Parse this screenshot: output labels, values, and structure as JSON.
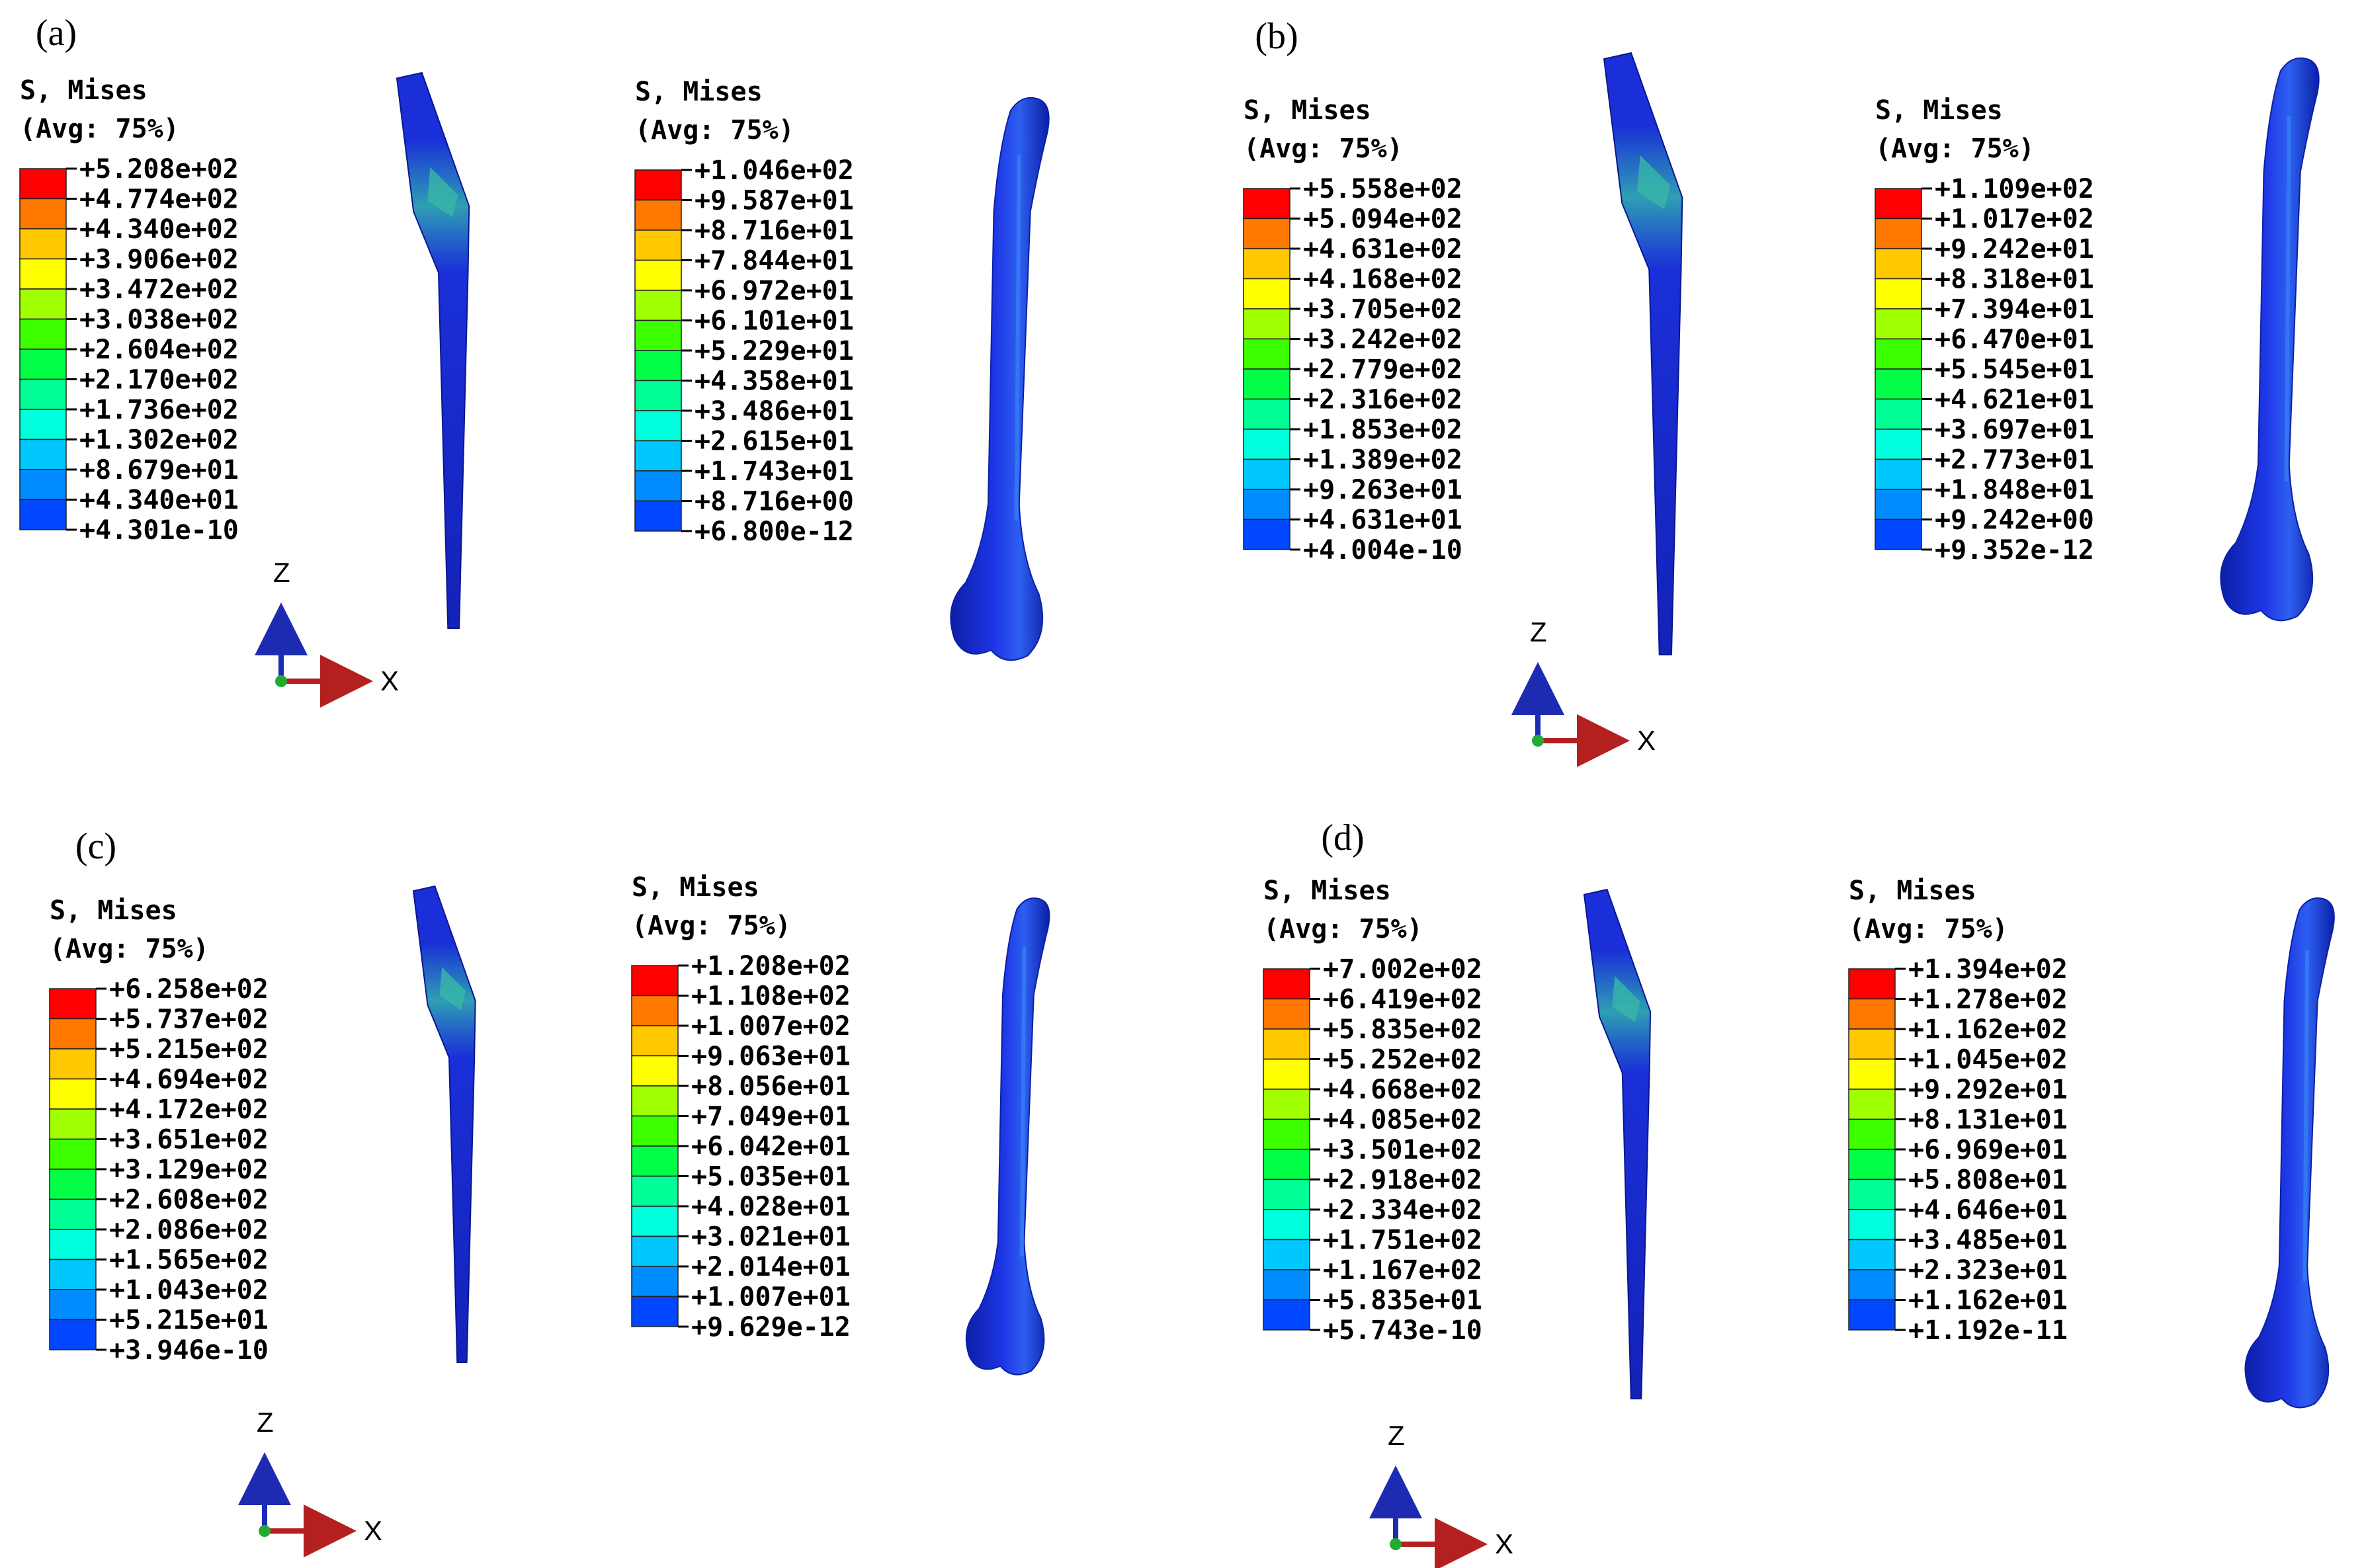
{
  "colors": {
    "colormap": [
      "#0000ff",
      "#0047ff",
      "#008cff",
      "#00c8ff",
      "#00ffdc",
      "#00ff96",
      "#00ff46",
      "#3cff00",
      "#a0ff00",
      "#ffff00",
      "#ffc800",
      "#ff7800",
      "#ff0000"
    ],
    "implant_base": "#1a2fd8",
    "implant_hot": "#2e9fb2",
    "bone_base": "#1e36e6",
    "bone_edge": "#0b1fa6",
    "triad_z": "#1d2bb3",
    "triad_x": "#b3201f",
    "triad_origin": "#22aa33"
  },
  "panels": [
    {
      "label": "(a)",
      "axis_z": "Z",
      "axis_x": "X",
      "legends": [
        {
          "title": "S, Mises",
          "subtitle": "(Avg: 75%)",
          "values": [
            "+5.208e+02",
            "+4.774e+02",
            "+4.340e+02",
            "+3.906e+02",
            "+3.472e+02",
            "+3.038e+02",
            "+2.604e+02",
            "+2.170e+02",
            "+1.736e+02",
            "+1.302e+02",
            "+8.679e+01",
            "+4.340e+01",
            "+4.301e-10"
          ]
        },
        {
          "title": "S, Mises",
          "subtitle": "(Avg: 75%)",
          "values": [
            "+1.046e+02",
            "+9.587e+01",
            "+8.716e+01",
            "+7.844e+01",
            "+6.972e+01",
            "+6.101e+01",
            "+5.229e+01",
            "+4.358e+01",
            "+3.486e+01",
            "+2.615e+01",
            "+1.743e+01",
            "+8.716e+00",
            "+6.800e-12"
          ]
        }
      ]
    },
    {
      "label": "(b)",
      "axis_z": "Z",
      "axis_x": "X",
      "legends": [
        {
          "title": "S, Mises",
          "subtitle": "(Avg: 75%)",
          "values": [
            "+5.558e+02",
            "+5.094e+02",
            "+4.631e+02",
            "+4.168e+02",
            "+3.705e+02",
            "+3.242e+02",
            "+2.779e+02",
            "+2.316e+02",
            "+1.853e+02",
            "+1.389e+02",
            "+9.263e+01",
            "+4.631e+01",
            "+4.004e-10"
          ]
        },
        {
          "title": "S, Mises",
          "subtitle": "(Avg: 75%)",
          "values": [
            "+1.109e+02",
            "+1.017e+02",
            "+9.242e+01",
            "+8.318e+01",
            "+7.394e+01",
            "+6.470e+01",
            "+5.545e+01",
            "+4.621e+01",
            "+3.697e+01",
            "+2.773e+01",
            "+1.848e+01",
            "+9.242e+00",
            "+9.352e-12"
          ]
        }
      ]
    },
    {
      "label": "(c)",
      "axis_z": "Z",
      "axis_x": "X",
      "legends": [
        {
          "title": "S, Mises",
          "subtitle": "(Avg: 75%)",
          "values": [
            "+6.258e+02",
            "+5.737e+02",
            "+5.215e+02",
            "+4.694e+02",
            "+4.172e+02",
            "+3.651e+02",
            "+3.129e+02",
            "+2.608e+02",
            "+2.086e+02",
            "+1.565e+02",
            "+1.043e+02",
            "+5.215e+01",
            "+3.946e-10"
          ]
        },
        {
          "title": "S, Mises",
          "subtitle": "(Avg: 75%)",
          "values": [
            "+1.208e+02",
            "+1.108e+02",
            "+1.007e+02",
            "+9.063e+01",
            "+8.056e+01",
            "+7.049e+01",
            "+6.042e+01",
            "+5.035e+01",
            "+4.028e+01",
            "+3.021e+01",
            "+2.014e+01",
            "+1.007e+01",
            "+9.629e-12"
          ]
        }
      ]
    },
    {
      "label": "(d)",
      "axis_z": "Z",
      "axis_x": "X",
      "legends": [
        {
          "title": "S, Mises",
          "subtitle": "(Avg: 75%)",
          "values": [
            "+7.002e+02",
            "+6.419e+02",
            "+5.835e+02",
            "+5.252e+02",
            "+4.668e+02",
            "+4.085e+02",
            "+3.501e+02",
            "+2.918e+02",
            "+2.334e+02",
            "+1.751e+02",
            "+1.167e+02",
            "+5.835e+01",
            "+5.743e-10"
          ]
        },
        {
          "title": "S, Mises",
          "subtitle": "(Avg: 75%)",
          "values": [
            "+1.394e+02",
            "+1.278e+02",
            "+1.162e+02",
            "+1.045e+02",
            "+9.292e+01",
            "+8.131e+01",
            "+6.969e+01",
            "+5.808e+01",
            "+4.646e+01",
            "+3.485e+01",
            "+2.323e+01",
            "+1.162e+01",
            "+1.192e-11"
          ]
        }
      ]
    }
  ]
}
